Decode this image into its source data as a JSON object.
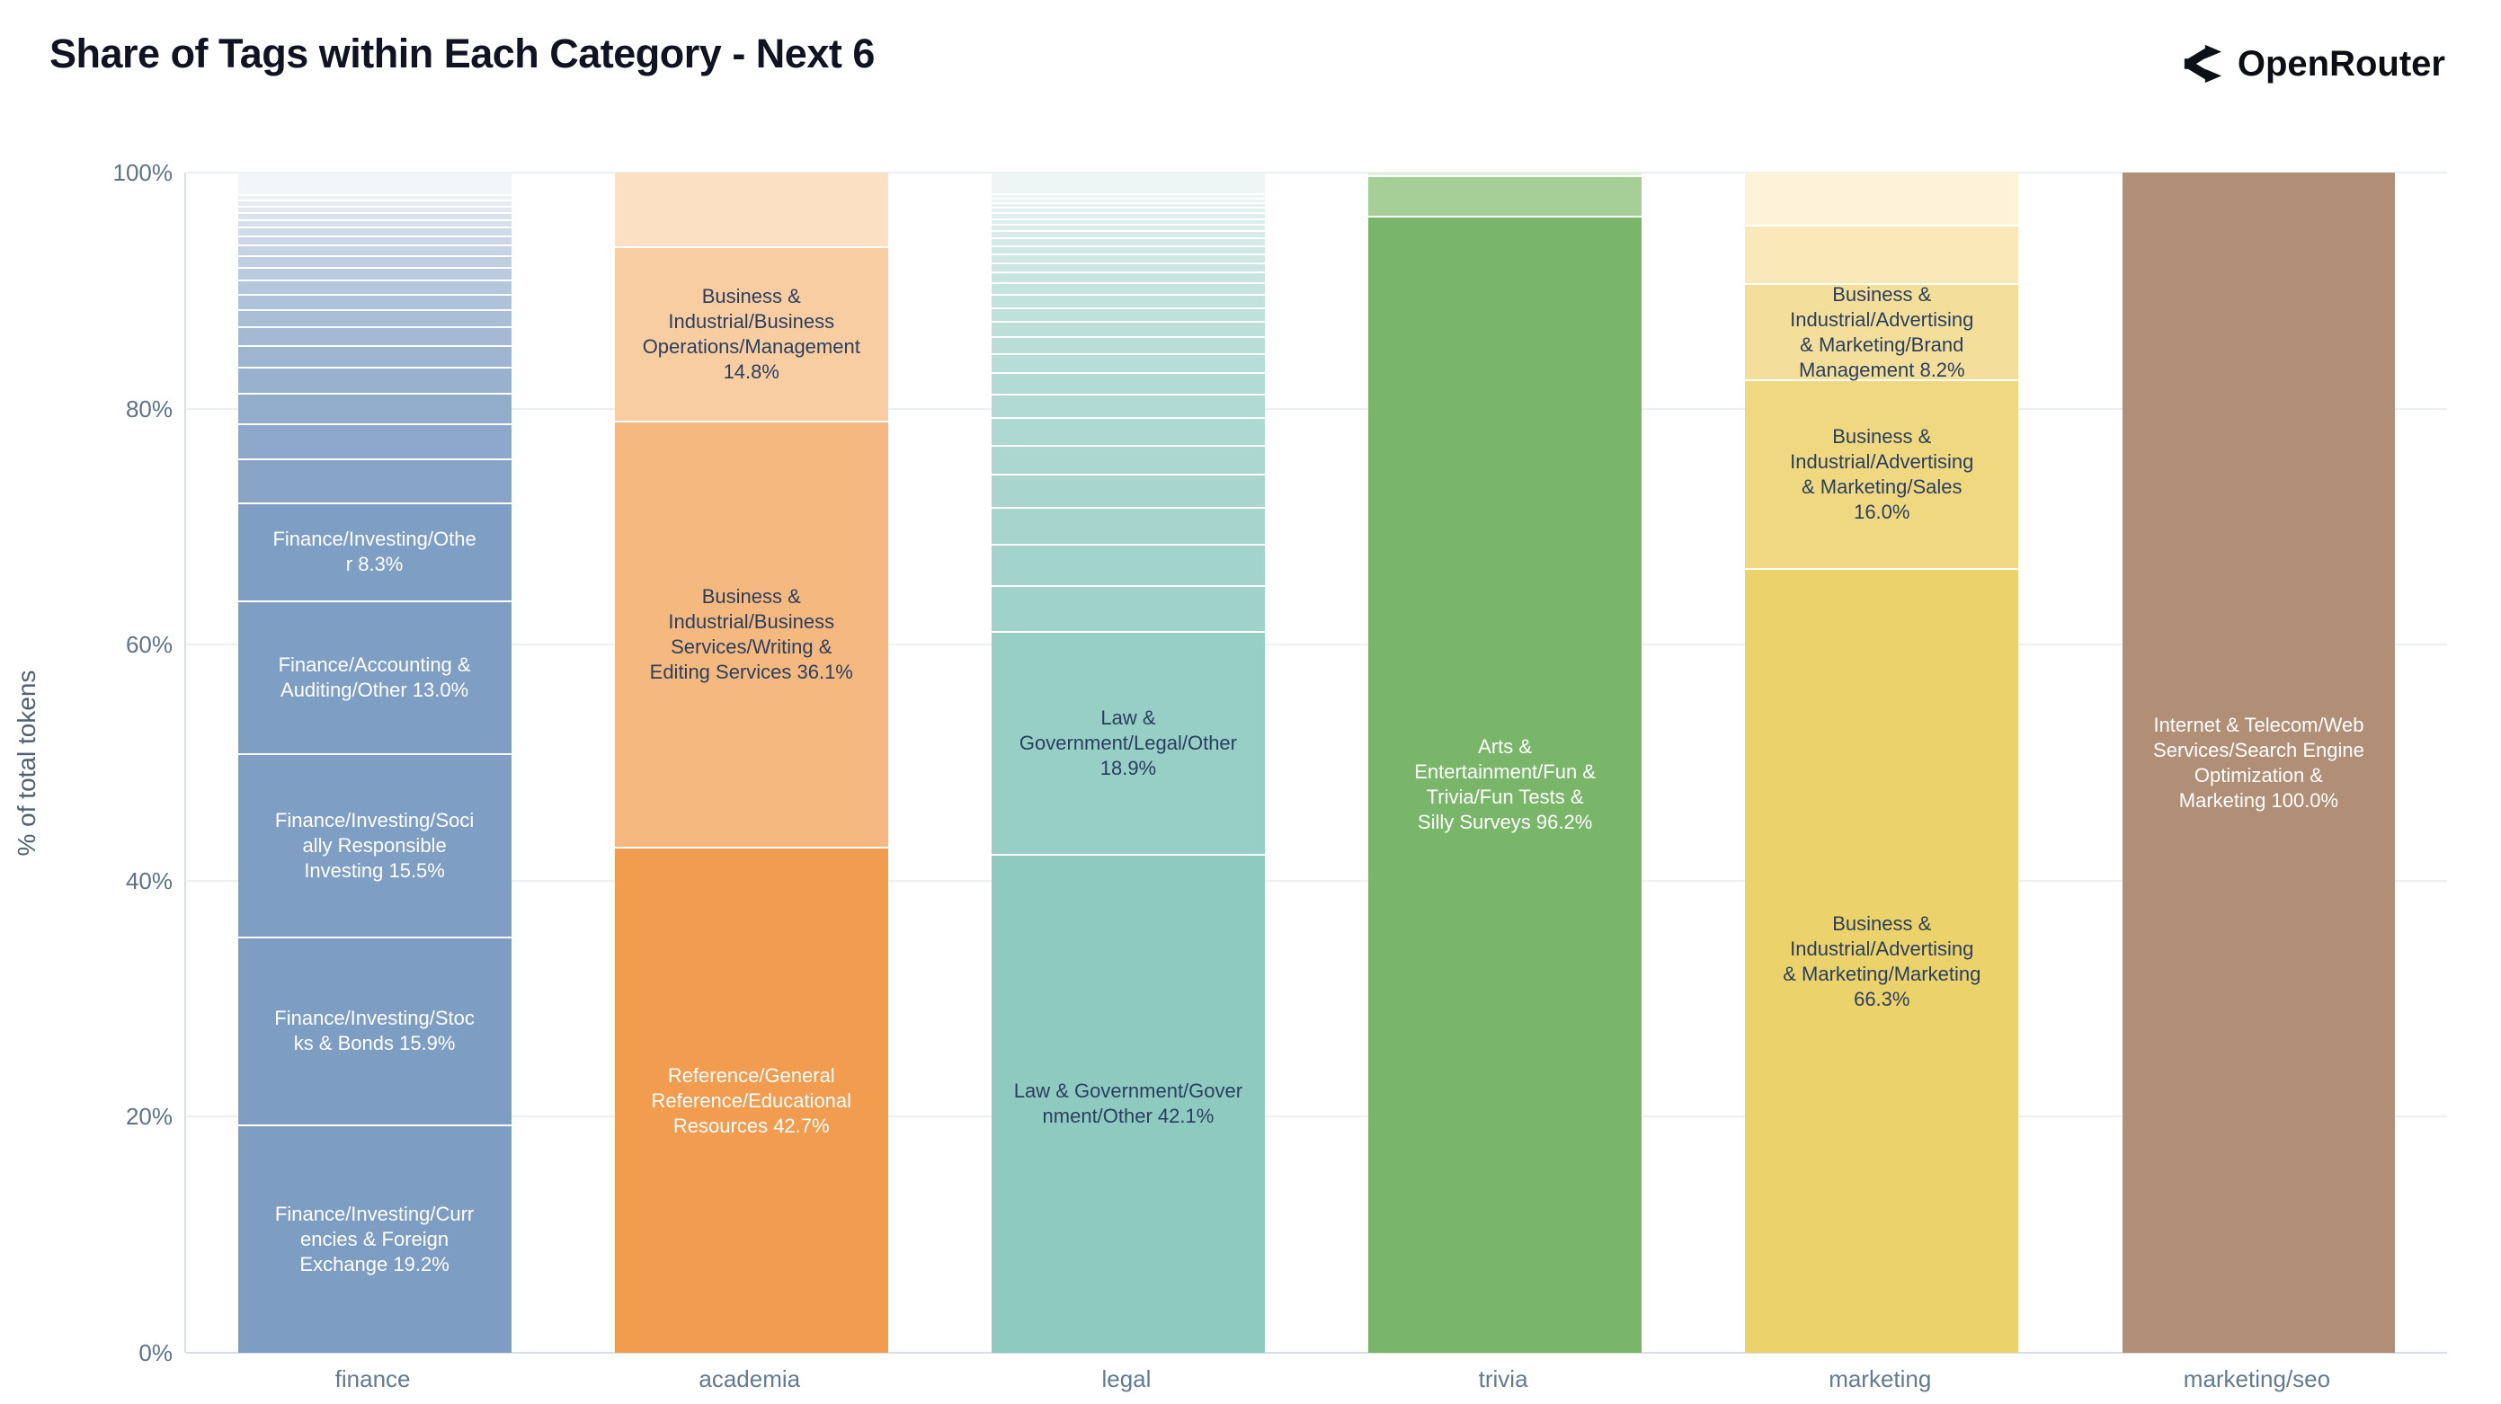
{
  "title": "Share of Tags within Each Category - Next 6",
  "logo": {
    "text": "OpenRouter"
  },
  "y_axis": {
    "title": "% of total tokens",
    "ticks": [
      {
        "label": "0%",
        "value": 0
      },
      {
        "label": "20%",
        "value": 20
      },
      {
        "label": "40%",
        "value": 40
      },
      {
        "label": "60%",
        "value": 60
      },
      {
        "label": "80%",
        "value": 80
      },
      {
        "label": "100%",
        "value": 100
      }
    ]
  },
  "chart_data": {
    "type": "bar",
    "stacked": true,
    "orientation": "vertical",
    "ylim": [
      0,
      100
    ],
    "ylabel": "% of total tokens",
    "grid": true,
    "segment_order": "top_to_bottom",
    "categories": [
      "finance",
      "academia",
      "legal",
      "trivia",
      "marketing",
      "marketing/seo"
    ],
    "bars": [
      {
        "category": "finance",
        "segments": [
          {
            "label": null,
            "value": 2.0,
            "color": "#f2f5f9"
          },
          {
            "label": null,
            "value": 0.45,
            "color": "#ecf1f6"
          },
          {
            "label": null,
            "value": 0.5,
            "color": "#e7ecf4"
          },
          {
            "label": null,
            "value": 0.55,
            "color": "#e1e8f1"
          },
          {
            "label": null,
            "value": 0.6,
            "color": "#dbe4ee"
          },
          {
            "label": null,
            "value": 0.65,
            "color": "#d6e0ec"
          },
          {
            "label": null,
            "value": 0.7,
            "color": "#d0dbe9"
          },
          {
            "label": null,
            "value": 0.8,
            "color": "#cbd7e7"
          },
          {
            "label": null,
            "value": 0.9,
            "color": "#c5d3e4"
          },
          {
            "label": null,
            "value": 1.0,
            "color": "#bfcfe1"
          },
          {
            "label": null,
            "value": 1.1,
            "color": "#bacadf"
          },
          {
            "label": null,
            "value": 1.2,
            "color": "#b4c6dc"
          },
          {
            "label": null,
            "value": 1.3,
            "color": "#aec2d9"
          },
          {
            "label": null,
            "value": 1.45,
            "color": "#a9bed7"
          },
          {
            "label": null,
            "value": 1.6,
            "color": "#a3b9d4"
          },
          {
            "label": null,
            "value": 1.8,
            "color": "#9eb5d2"
          },
          {
            "label": null,
            "value": 2.2,
            "color": "#98b1cf"
          },
          {
            "label": null,
            "value": 2.6,
            "color": "#92adcc"
          },
          {
            "label": null,
            "value": 3.0,
            "color": "#8da8ca"
          },
          {
            "label": null,
            "value": 3.7,
            "color": "#87a4c7"
          },
          {
            "label": "Finance/Investing/Othe\nr 8.3%",
            "value": 8.3,
            "color": "#7f9ec4",
            "text_color": "#ffffff"
          },
          {
            "label": "Finance/Accounting &\nAuditing/Other 13.0%",
            "value": 13.0,
            "color": "#7f9ec4",
            "text_color": "#ffffff"
          },
          {
            "label": "Finance/Investing/Soci\nally Responsible\nInvesting 15.5%",
            "value": 15.5,
            "color": "#7f9ec4",
            "text_color": "#ffffff"
          },
          {
            "label": "Finance/Investing/Stoc\nks & Bonds 15.9%",
            "value": 15.9,
            "color": "#7e9dc3",
            "text_color": "#ffffff"
          },
          {
            "label": "Finance/Investing/Curr\nencies & Foreign\nExchange 19.2%",
            "value": 19.2,
            "color": "#7e9dc3",
            "text_color": "#ffffff"
          }
        ]
      },
      {
        "category": "academia",
        "segments": [
          {
            "label": null,
            "value": 6.4,
            "color": "#fbe0c3"
          },
          {
            "label": "Business &\nIndustrial/Business\nOperations/Management\n14.8%",
            "value": 14.8,
            "color": "#f8cda1",
            "text_color": "#2a3f5f"
          },
          {
            "label": "Business &\nIndustrial/Business\nServices/Writing &\nEditing Services 36.1%",
            "value": 36.1,
            "color": "#f5b97f",
            "text_color": "#2a3f5f"
          },
          {
            "label": "Reference/General\nReference/Educational\nResources 42.7%",
            "value": 42.7,
            "color": "#f19c4e",
            "text_color": "#ffffff"
          }
        ]
      },
      {
        "category": "legal",
        "segments": [
          {
            "label": null,
            "value": 1.9,
            "color": "#eef6f5"
          },
          {
            "label": null,
            "value": 0.35,
            "color": "#ebf5f3"
          },
          {
            "label": null,
            "value": 0.4,
            "color": "#e8f3f2"
          },
          {
            "label": null,
            "value": 0.4,
            "color": "#e5f2f0"
          },
          {
            "label": null,
            "value": 0.45,
            "color": "#e2f1ef"
          },
          {
            "label": null,
            "value": 0.5,
            "color": "#dfefed"
          },
          {
            "label": null,
            "value": 0.5,
            "color": "#dceeeb"
          },
          {
            "label": null,
            "value": 0.55,
            "color": "#daedea"
          },
          {
            "label": null,
            "value": 0.6,
            "color": "#d7ebe8"
          },
          {
            "label": null,
            "value": 0.65,
            "color": "#d4eae7"
          },
          {
            "label": null,
            "value": 0.7,
            "color": "#d1e9e5"
          },
          {
            "label": null,
            "value": 0.75,
            "color": "#cee7e3"
          },
          {
            "label": null,
            "value": 0.8,
            "color": "#cbe6e2"
          },
          {
            "label": null,
            "value": 0.9,
            "color": "#c8e5e0"
          },
          {
            "label": null,
            "value": 1.0,
            "color": "#c5e3df"
          },
          {
            "label": null,
            "value": 1.1,
            "color": "#c2e2dd"
          },
          {
            "label": null,
            "value": 1.2,
            "color": "#bfe1db"
          },
          {
            "label": null,
            "value": 1.3,
            "color": "#bcdfda"
          },
          {
            "label": null,
            "value": 1.45,
            "color": "#b9ded8"
          },
          {
            "label": null,
            "value": 1.6,
            "color": "#b6ddd7"
          },
          {
            "label": null,
            "value": 1.8,
            "color": "#b3dbd5"
          },
          {
            "label": null,
            "value": 2.0,
            "color": "#b1dad4"
          },
          {
            "label": null,
            "value": 2.3,
            "color": "#aed9d2"
          },
          {
            "label": null,
            "value": 2.5,
            "color": "#abd7d0"
          },
          {
            "label": null,
            "value": 2.8,
            "color": "#a8d6cf"
          },
          {
            "label": null,
            "value": 3.1,
            "color": "#a5d5cd"
          },
          {
            "label": null,
            "value": 3.5,
            "color": "#a2d3cc"
          },
          {
            "label": null,
            "value": 3.9,
            "color": "#9fd2ca"
          },
          {
            "label": "Law &\nGovernment/Legal/Other\n18.9%",
            "value": 18.9,
            "color": "#97cec5",
            "text_color": "#2a3f5f"
          },
          {
            "label": "Law & Government/Gover\nnment/Other 42.1%",
            "value": 42.1,
            "color": "#8fcac1",
            "text_color": "#2a3f5f"
          }
        ]
      },
      {
        "category": "trivia",
        "segments": [
          {
            "label": null,
            "value": 0.4,
            "color": "#e2efdc"
          },
          {
            "label": null,
            "value": 3.4,
            "color": "#a6ce97"
          },
          {
            "label": "Arts &\nEntertainment/Fun &\nTrivia/Fun Tests &\nSilly Surveys 96.2%",
            "value": 96.2,
            "color": "#79b66a",
            "text_color": "#ffffff"
          }
        ]
      },
      {
        "category": "marketing",
        "segments": [
          {
            "label": null,
            "value": 4.6,
            "color": "#fdf3d9"
          },
          {
            "label": null,
            "value": 4.9,
            "color": "#f9e9b8"
          },
          {
            "label": "Business &\nIndustrial/Advertising\n& Marketing/Brand\nManagement 8.2%",
            "value": 8.2,
            "color": "#f3df9a",
            "text_color": "#2a3f5f"
          },
          {
            "label": "Business &\nIndustrial/Advertising\n& Marketing/Sales\n16.0%",
            "value": 16.0,
            "color": "#efd87f",
            "text_color": "#2a3f5f"
          },
          {
            "label": "Business &\nIndustrial/Advertising\n& Marketing/Marketing\n66.3%",
            "value": 66.3,
            "color": "#ecd26a",
            "text_color": "#2a3f5f"
          }
        ]
      },
      {
        "category": "marketing/seo",
        "segments": [
          {
            "label": "Internet & Telecom/Web\nServices/Search Engine\nOptimization &\nMarketing 100.0%",
            "value": 100.0,
            "color": "#b18e76",
            "text_color": "#ffffff"
          }
        ]
      }
    ]
  }
}
